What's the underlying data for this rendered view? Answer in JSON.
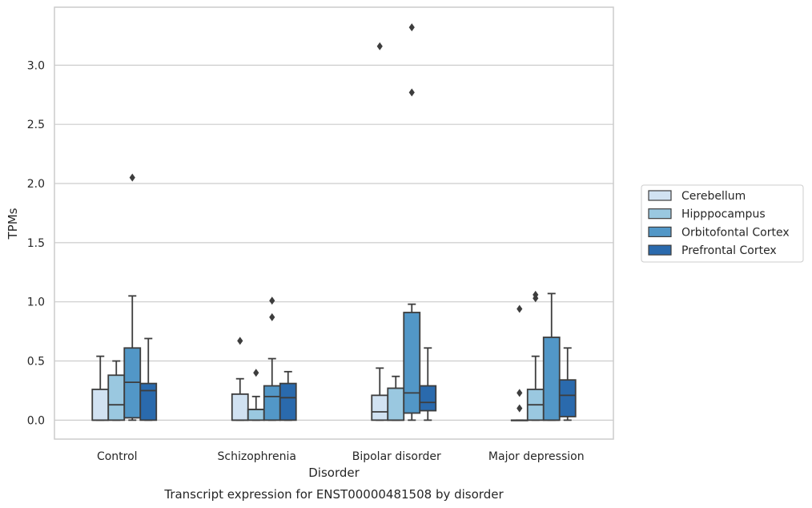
{
  "chart_data": {
    "type": "box",
    "title": "Transcript expression for ENST00000481508 by disorder",
    "xlabel": "Disorder",
    "ylabel": "TPMs",
    "ylim": [
      -0.16,
      3.49
    ],
    "yticks": [
      "0.0",
      "0.5",
      "1.0",
      "1.5",
      "2.0",
      "2.5",
      "3.0"
    ],
    "ytick_values": [
      0.0,
      0.5,
      1.0,
      1.5,
      2.0,
      2.5,
      3.0
    ],
    "categories": [
      "Control",
      "Schizophrenia",
      "Bipolar disorder",
      "Major depression"
    ],
    "grid": "horizontal",
    "legend_position": "right",
    "series": [
      {
        "name": "Cerebellum",
        "color": "#d1e2f2",
        "boxes": [
          {
            "whislo": 0.0,
            "q1": 0.0,
            "med": 0.0,
            "q3": 0.26,
            "whishi": 0.54,
            "fliers": []
          },
          {
            "whislo": 0.0,
            "q1": 0.0,
            "med": 0.0,
            "q3": 0.22,
            "whishi": 0.35,
            "fliers": [
              0.67
            ]
          },
          {
            "whislo": 0.0,
            "q1": 0.0,
            "med": 0.07,
            "q3": 0.21,
            "whishi": 0.44,
            "fliers": [
              3.16
            ]
          },
          {
            "whislo": 0.0,
            "q1": 0.0,
            "med": 0.0,
            "q3": 0.0,
            "whishi": 0.0,
            "fliers": [
              0.1,
              0.23,
              0.94
            ]
          }
        ]
      },
      {
        "name": "Hipppocampus",
        "color": "#9ac8e0",
        "boxes": [
          {
            "whislo": 0.0,
            "q1": 0.0,
            "med": 0.13,
            "q3": 0.38,
            "whishi": 0.5,
            "fliers": []
          },
          {
            "whislo": 0.0,
            "q1": 0.0,
            "med": 0.09,
            "q3": 0.09,
            "whishi": 0.2,
            "fliers": [
              0.4
            ]
          },
          {
            "whislo": 0.0,
            "q1": 0.0,
            "med": 0.0,
            "q3": 0.27,
            "whishi": 0.37,
            "fliers": []
          },
          {
            "whislo": 0.0,
            "q1": 0.0,
            "med": 0.13,
            "q3": 0.26,
            "whishi": 0.54,
            "fliers": [
              1.03,
              1.06
            ]
          }
        ]
      },
      {
        "name": "Orbitofontal Cortex",
        "color": "#5297c7",
        "boxes": [
          {
            "whislo": 0.0,
            "q1": 0.02,
            "med": 0.32,
            "q3": 0.61,
            "whishi": 1.05,
            "fliers": [
              2.05
            ]
          },
          {
            "whislo": 0.0,
            "q1": 0.0,
            "med": 0.2,
            "q3": 0.29,
            "whishi": 0.52,
            "fliers": [
              0.87,
              1.01
            ]
          },
          {
            "whislo": 0.0,
            "q1": 0.06,
            "med": 0.23,
            "q3": 0.91,
            "whishi": 0.98,
            "fliers": [
              2.77,
              3.32
            ]
          },
          {
            "whislo": 0.0,
            "q1": 0.0,
            "med": 0.0,
            "q3": 0.7,
            "whishi": 1.07,
            "fliers": []
          }
        ]
      },
      {
        "name": "Prefrontal Cortex",
        "color": "#2a6aad",
        "boxes": [
          {
            "whislo": 0.0,
            "q1": 0.0,
            "med": 0.25,
            "q3": 0.31,
            "whishi": 0.69,
            "fliers": []
          },
          {
            "whislo": 0.0,
            "q1": 0.0,
            "med": 0.19,
            "q3": 0.31,
            "whishi": 0.41,
            "fliers": []
          },
          {
            "whislo": 0.0,
            "q1": 0.08,
            "med": 0.15,
            "q3": 0.29,
            "whishi": 0.61,
            "fliers": []
          },
          {
            "whislo": 0.0,
            "q1": 0.03,
            "med": 0.21,
            "q3": 0.34,
            "whishi": 0.61,
            "fliers": []
          }
        ]
      }
    ]
  }
}
